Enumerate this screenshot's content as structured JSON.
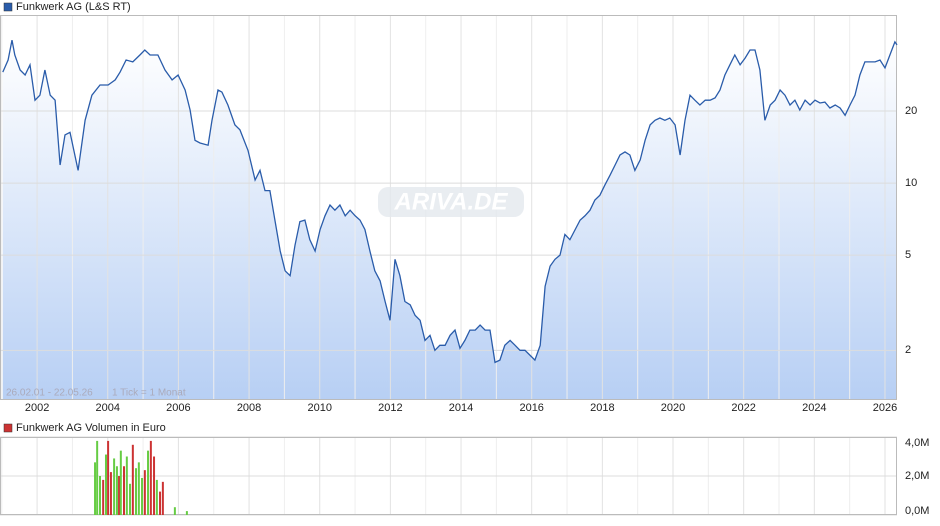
{
  "chart_data": [
    {
      "type": "line",
      "subtitle": "26.02.01 - 22.05.26",
      "annotation": "1 Tick = 1 Monat",
      "watermark": "ARIVA.DE",
      "log_scale": true,
      "grid": true,
      "legend": "top-left",
      "xlim": [
        2000.95,
        2026.34
      ],
      "ylim": [
        1.24,
        50.4
      ],
      "xticks": [
        2002,
        2004,
        2006,
        2008,
        2010,
        2012,
        2014,
        2016,
        2018,
        2020,
        2022,
        2024,
        2026
      ],
      "yticks": [
        2,
        5,
        10,
        20
      ],
      "x": [
        2001.03,
        2001.18,
        2001.29,
        2001.37,
        2001.52,
        2001.66,
        2001.8,
        2001.94,
        2002.08,
        2002.22,
        2002.37,
        2002.51,
        2002.65,
        2002.79,
        2002.93,
        2003.16,
        2003.36,
        2003.55,
        2003.78,
        2004.01,
        2004.21,
        2004.35,
        2004.52,
        2004.71,
        2004.91,
        2005.05,
        2005.2,
        2005.42,
        2005.62,
        2005.82,
        2005.99,
        2006.19,
        2006.33,
        2006.47,
        2006.61,
        2006.84,
        2006.95,
        2007.12,
        2007.23,
        2007.4,
        2007.6,
        2007.74,
        2007.97,
        2008.17,
        2008.31,
        2008.45,
        2008.59,
        2008.73,
        2008.88,
        2009.02,
        2009.16,
        2009.3,
        2009.44,
        2009.58,
        2009.72,
        2009.87,
        2010.01,
        2010.15,
        2010.29,
        2010.43,
        2010.57,
        2010.72,
        2010.86,
        2011.0,
        2011.14,
        2011.28,
        2011.42,
        2011.56,
        2011.71,
        2011.85,
        2011.99,
        2012.13,
        2012.27,
        2012.41,
        2012.56,
        2012.7,
        2012.84,
        2012.98,
        2013.12,
        2013.26,
        2013.4,
        2013.55,
        2013.69,
        2013.83,
        2013.97,
        2014.11,
        2014.25,
        2014.4,
        2014.54,
        2014.68,
        2014.82,
        2014.96,
        2015.1,
        2015.24,
        2015.39,
        2015.53,
        2015.67,
        2015.81,
        2015.95,
        2016.09,
        2016.24,
        2016.38,
        2016.52,
        2016.66,
        2016.8,
        2016.94,
        2017.08,
        2017.23,
        2017.37,
        2017.51,
        2017.65,
        2017.79,
        2017.93,
        2018.07,
        2018.22,
        2018.36,
        2018.5,
        2018.64,
        2018.78,
        2018.92,
        2019.07,
        2019.21,
        2019.35,
        2019.49,
        2019.63,
        2019.77,
        2019.91,
        2020.06,
        2020.2,
        2020.34,
        2020.48,
        2020.62,
        2020.76,
        2020.91,
        2021.05,
        2021.19,
        2021.33,
        2021.47,
        2021.61,
        2021.75,
        2021.9,
        2022.04,
        2022.18,
        2022.32,
        2022.46,
        2022.6,
        2022.75,
        2022.89,
        2023.03,
        2023.17,
        2023.31,
        2023.45,
        2023.59,
        2023.74,
        2023.88,
        2024.02,
        2024.16,
        2024.3,
        2024.44,
        2024.59,
        2024.73,
        2024.87,
        2025.01,
        2025.15,
        2025.29,
        2025.43,
        2025.58,
        2025.72,
        2025.86,
        2026.0,
        2026.14,
        2026.28,
        2026.34
      ],
      "series": [
        {
          "name": "Funkwerk AG (L&S RT)",
          "color": "#2a5caa",
          "values": [
            29.1,
            32.7,
            39.6,
            34.3,
            29.7,
            28.3,
            31.2,
            22.2,
            23.3,
            29.7,
            23.3,
            22.2,
            11.9,
            15.9,
            16.3,
            11.3,
            18.3,
            23.3,
            25.7,
            25.7,
            27.0,
            29.1,
            32.7,
            32.1,
            34.3,
            36.0,
            34.3,
            34.3,
            29.7,
            27.0,
            28.3,
            24.5,
            20.2,
            15.1,
            14.7,
            14.4,
            18.3,
            24.5,
            24.0,
            21.2,
            17.5,
            16.7,
            13.7,
            10.3,
            11.3,
            9.3,
            9.3,
            7.0,
            5.2,
            4.3,
            4.1,
            5.5,
            6.9,
            7.0,
            5.8,
            5.2,
            6.4,
            7.3,
            8.1,
            7.7,
            8.1,
            7.3,
            7.7,
            7.3,
            7.0,
            6.4,
            5.2,
            4.3,
            3.9,
            3.2,
            2.67,
            4.8,
            4.1,
            3.2,
            3.1,
            2.8,
            2.67,
            2.2,
            2.31,
            2.0,
            2.1,
            2.1,
            2.31,
            2.43,
            2.04,
            2.2,
            2.43,
            2.43,
            2.55,
            2.43,
            2.43,
            1.78,
            1.82,
            2.1,
            2.2,
            2.1,
            2.0,
            2.0,
            1.91,
            1.82,
            2.1,
            3.7,
            4.5,
            4.8,
            5.0,
            6.1,
            5.8,
            6.4,
            7.0,
            7.3,
            7.7,
            8.5,
            8.9,
            9.8,
            10.8,
            11.9,
            13.1,
            13.5,
            13.1,
            11.3,
            12.5,
            15.1,
            17.5,
            18.3,
            18.7,
            18.3,
            18.7,
            17.5,
            13.1,
            18.3,
            23.3,
            22.2,
            21.2,
            22.2,
            22.2,
            22.7,
            24.5,
            28.3,
            31.2,
            34.3,
            31.2,
            33.3,
            36.0,
            36.0,
            29.7,
            18.3,
            21.2,
            22.2,
            24.5,
            23.3,
            21.2,
            22.2,
            20.2,
            22.2,
            21.2,
            22.2,
            21.6,
            21.8,
            20.6,
            21.2,
            20.6,
            19.2,
            21.2,
            23.3,
            28.3,
            32.1,
            32.1,
            32.1,
            32.7,
            30.3,
            34.3,
            38.9,
            37.8
          ]
        }
      ]
    },
    {
      "type": "bar",
      "legend": "top-left",
      "xlim": [
        2000.95,
        2026.34
      ],
      "ylim": [
        0,
        4000000
      ],
      "yticks": [
        {
          "value": 0,
          "label": "0,0M"
        },
        {
          "value": 2000000,
          "label": "2,0M"
        },
        {
          "value": 4000000,
          "label": "4,0M"
        }
      ],
      "x": [
        2003.64,
        2003.7,
        2003.78,
        2003.87,
        2003.95,
        2004.01,
        2004.09,
        2004.18,
        2004.26,
        2004.32,
        2004.37,
        2004.46,
        2004.54,
        2004.63,
        2004.71,
        2004.8,
        2004.88,
        2004.97,
        2005.05,
        2005.14,
        2005.22,
        2005.31,
        2005.39,
        2005.48,
        2005.56,
        2005.9,
        2006.24
      ],
      "series": [
        {
          "name": "Funkwerk AG Volumen in Euro",
          "color": "#cc3333",
          "values": [
            2700000,
            3800000,
            2000000,
            1800000,
            3100000,
            3800000,
            2200000,
            2900000,
            2500000,
            2000000,
            3300000,
            2500000,
            3000000,
            1600000,
            3600000,
            2400000,
            2700000,
            1900000,
            2300000,
            3300000,
            3800000,
            3000000,
            1800000,
            1200000,
            1700000,
            400000,
            200000
          ],
          "colors": [
            "#66cc44",
            "#66cc44",
            "#66cc44",
            "#cc3333",
            "#66cc44",
            "#cc3333",
            "#cc3333",
            "#66cc44",
            "#66cc44",
            "#cc3333",
            "#66cc44",
            "#cc3333",
            "#66cc44",
            "#66cc44",
            "#cc3333",
            "#66cc44",
            "#66cc44",
            "#66cc44",
            "#cc3333",
            "#66cc44",
            "#cc3333",
            "#cc3333",
            "#66cc44",
            "#cc3333",
            "#cc3333",
            "#66cc44",
            "#66cc44"
          ]
        }
      ]
    }
  ]
}
